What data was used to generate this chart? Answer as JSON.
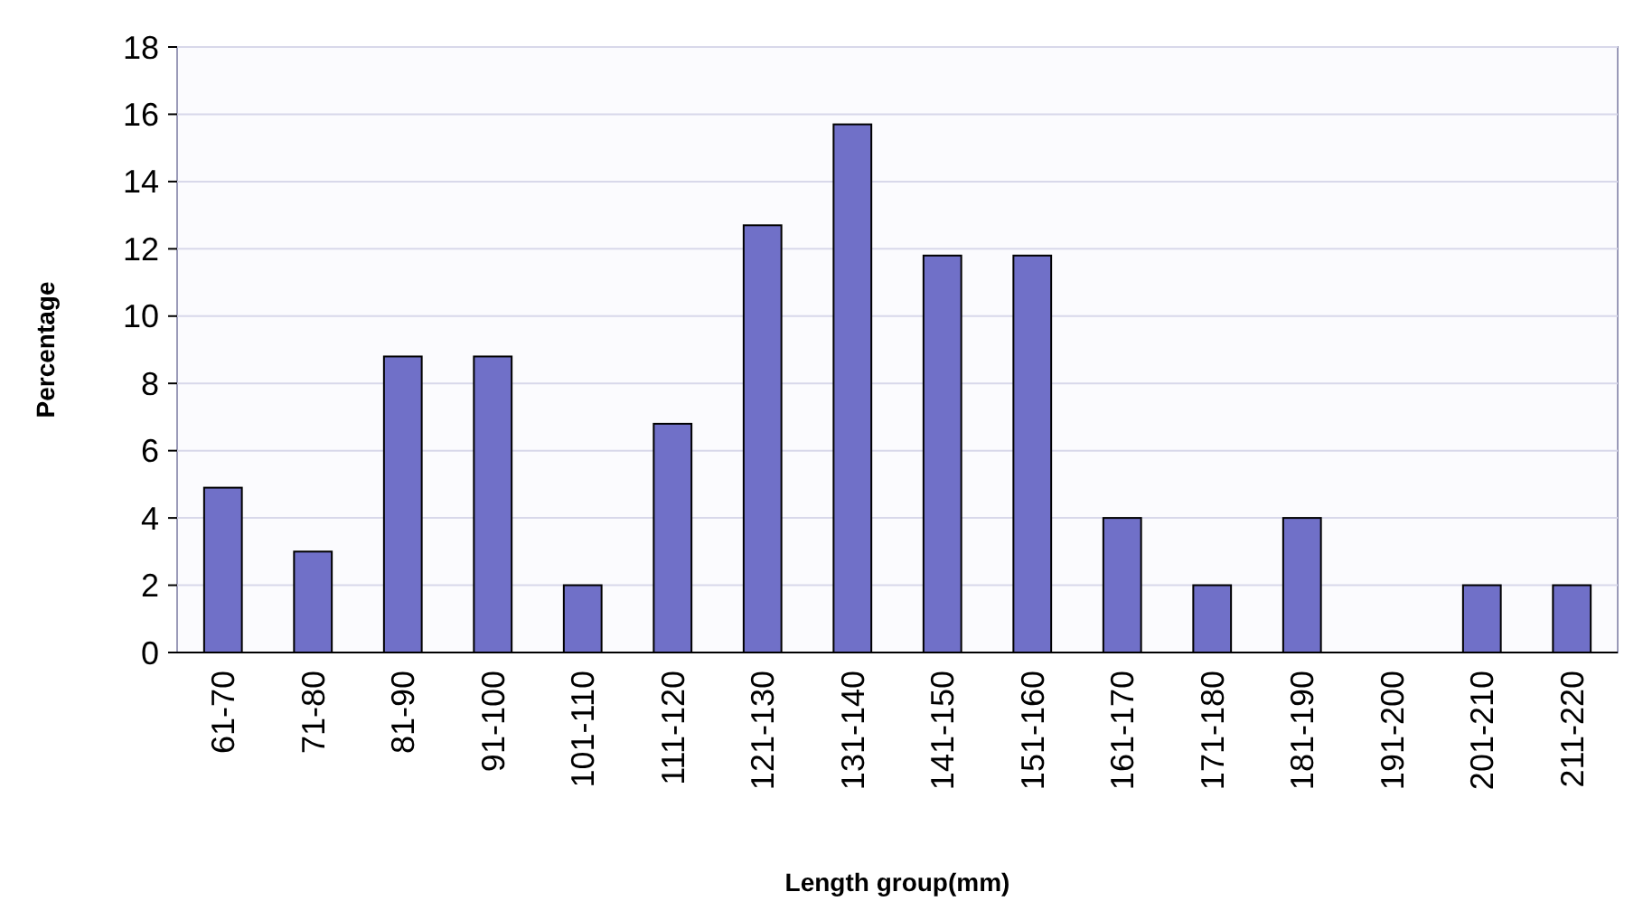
{
  "chart_data": {
    "type": "bar",
    "xlabel": "Length group(mm)",
    "ylabel": "Percentage",
    "categories": [
      "61-70",
      "71-80",
      "81-90",
      "91-100",
      "101-110",
      "111-120",
      "121-130",
      "131-140",
      "141-150",
      "151-160",
      "161-170",
      "171-180",
      "181-190",
      "191-200",
      "201-210",
      "211-220"
    ],
    "values": [
      4.9,
      3,
      8.8,
      8.8,
      2,
      6.8,
      12.7,
      15.7,
      11.8,
      11.8,
      4,
      2,
      4,
      0,
      2,
      2
    ],
    "color": "#7070c8",
    "ylim": [
      0,
      18
    ],
    "yticks": [
      0,
      2,
      4,
      6,
      8,
      10,
      12,
      14,
      16,
      18
    ],
    "grid": "y"
  }
}
